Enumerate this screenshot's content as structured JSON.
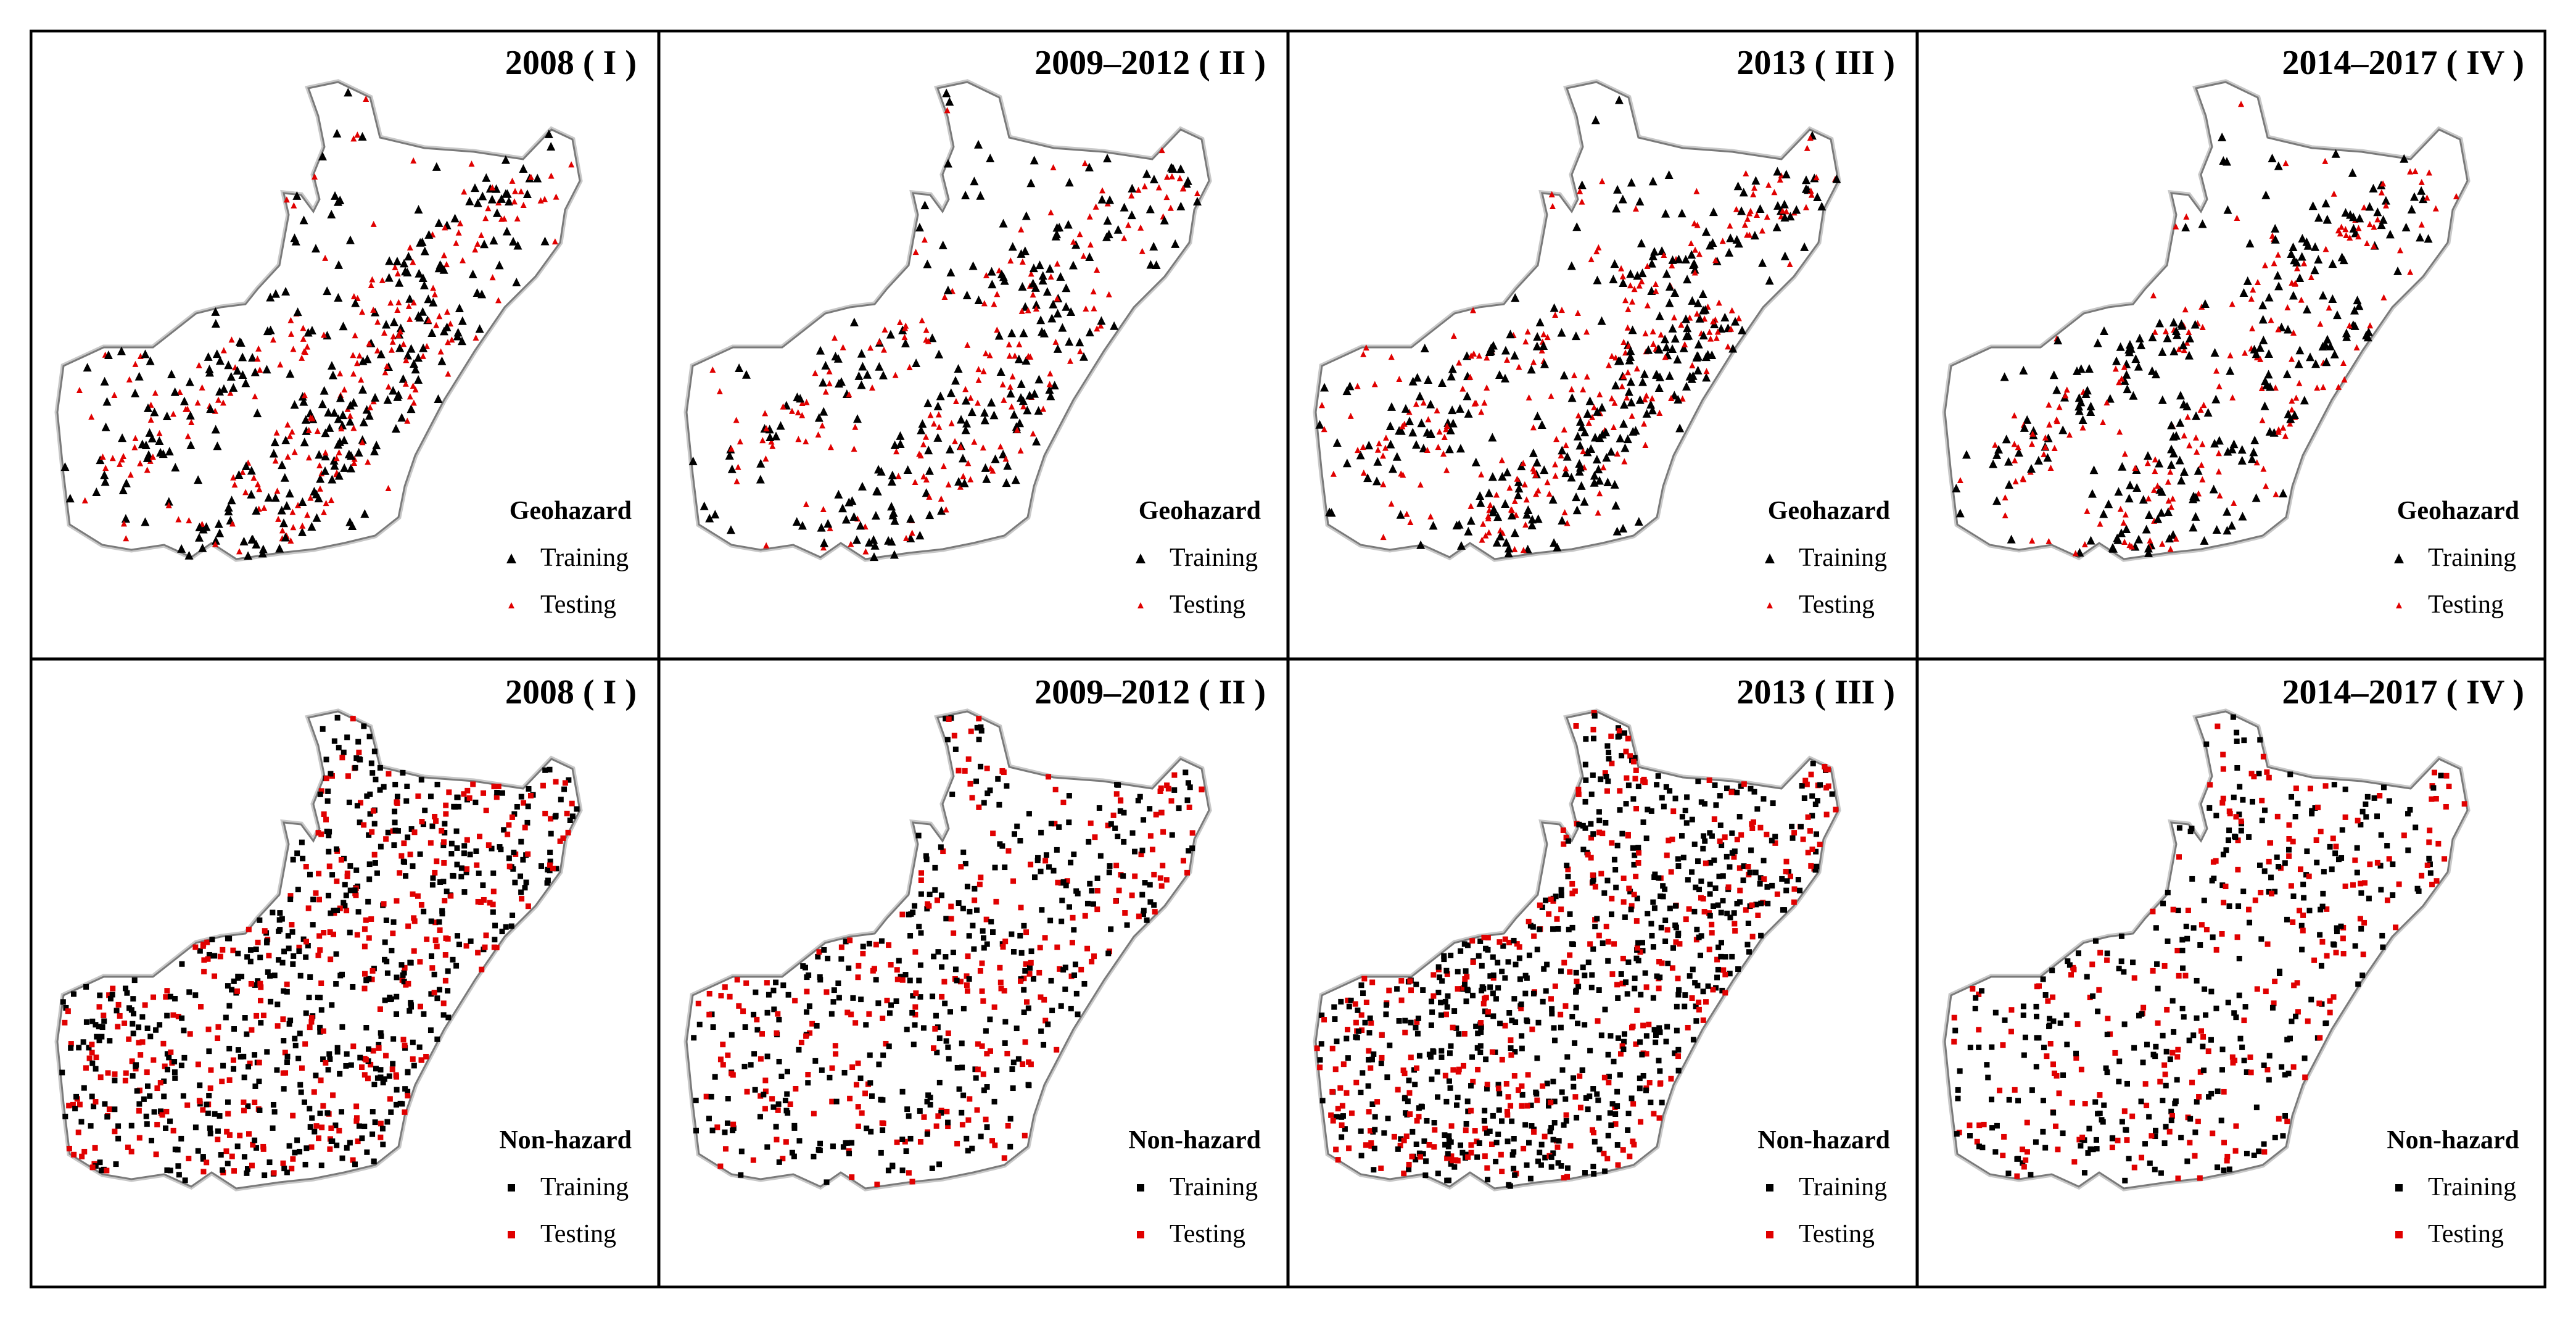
{
  "colors": {
    "training": "#000000",
    "testing": "#e00000",
    "outline": "#7a7a7a",
    "border": "#000000"
  },
  "rows": [
    {
      "legend_title": "Geohazard",
      "symbol": "triangle",
      "panels": [
        {
          "title": "2008 ( I )"
        },
        {
          "title": "2009–2012 ( II )"
        },
        {
          "title": "2013 ( III )"
        },
        {
          "title": "2014–2017 ( IV )"
        }
      ]
    },
    {
      "legend_title": "Non-hazard",
      "symbol": "square",
      "panels": [
        {
          "title": "2008 ( I )"
        },
        {
          "title": "2009–2012 ( II )"
        },
        {
          "title": "2013 ( III )"
        },
        {
          "title": "2014–2017 ( IV )"
        }
      ]
    }
  ],
  "legend": {
    "training_label": "Training",
    "testing_label": "Testing"
  }
}
